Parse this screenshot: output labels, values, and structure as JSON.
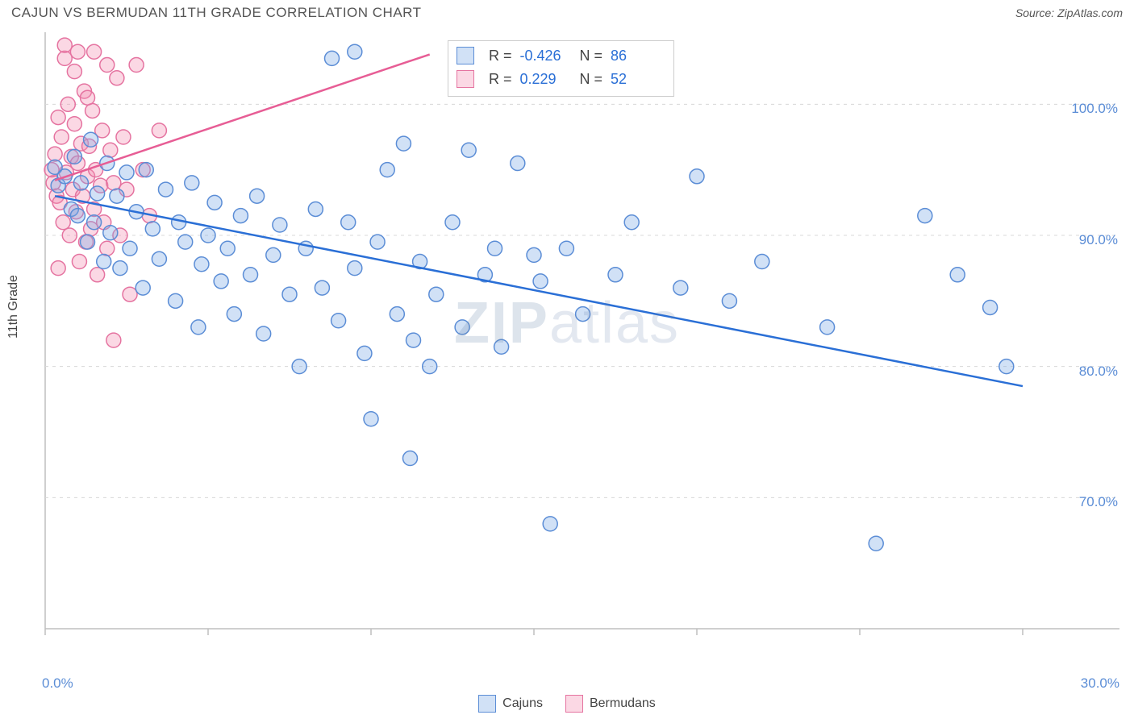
{
  "title": "CAJUN VS BERMUDAN 11TH GRADE CORRELATION CHART",
  "source_label": "Source: ",
  "source_name": "ZipAtlas.com",
  "ylabel": "11th Grade",
  "watermark": {
    "bold": "ZIP",
    "light": "atlas"
  },
  "legend": {
    "series_a": "Cajuns",
    "series_b": "Bermudans"
  },
  "stats": {
    "a": {
      "r_label": "R =",
      "r": "-0.426",
      "n_label": "N =",
      "n": "86"
    },
    "b": {
      "r_label": "R =",
      "r": "0.229",
      "n_label": "N =",
      "n": "52"
    }
  },
  "axes": {
    "xlim": [
      0,
      30
    ],
    "ylim": [
      60,
      105
    ],
    "x_ticks": [
      "0.0%",
      "30.0%"
    ],
    "y_ticks": [
      "100.0%",
      "90.0%",
      "80.0%",
      "70.0%"
    ],
    "y_tick_vals": [
      100,
      90,
      80,
      70
    ],
    "x_minor_ticks": [
      0,
      5,
      10,
      15,
      20,
      25,
      30
    ],
    "grid_color": "#d8d8d8",
    "axis_color": "#bfbfbf",
    "background": "#ffffff"
  },
  "colors": {
    "cajun_fill": "rgba(122,170,230,0.35)",
    "cajun_stroke": "#5b8dd6",
    "berm_fill": "rgba(244,143,177,0.35)",
    "berm_stroke": "#e573a0",
    "cajun_line": "#2a6fd6",
    "berm_line": "#e75d95",
    "label_color": "#5b8dd6",
    "text_color": "#555"
  },
  "marker_radius": 9,
  "trend_lines": {
    "cajun": {
      "x1": 0.3,
      "y1": 93.0,
      "x2": 30.0,
      "y2": 78.5
    },
    "berm": {
      "x1": 0.3,
      "y1": 94.2,
      "x2": 11.8,
      "y2": 103.8
    }
  },
  "series": {
    "cajuns": [
      [
        0.3,
        95.2
      ],
      [
        0.4,
        93.8
      ],
      [
        0.6,
        94.5
      ],
      [
        0.8,
        92.0
      ],
      [
        0.9,
        96.0
      ],
      [
        1.0,
        91.5
      ],
      [
        1.1,
        94.0
      ],
      [
        1.3,
        89.5
      ],
      [
        1.4,
        97.3
      ],
      [
        1.5,
        91.0
      ],
      [
        1.6,
        93.2
      ],
      [
        1.8,
        88.0
      ],
      [
        1.9,
        95.5
      ],
      [
        2.0,
        90.2
      ],
      [
        2.2,
        93.0
      ],
      [
        2.3,
        87.5
      ],
      [
        2.5,
        94.8
      ],
      [
        2.6,
        89.0
      ],
      [
        2.8,
        91.8
      ],
      [
        3.0,
        86.0
      ],
      [
        3.1,
        95.0
      ],
      [
        3.3,
        90.5
      ],
      [
        3.5,
        88.2
      ],
      [
        3.7,
        93.5
      ],
      [
        4.0,
        85.0
      ],
      [
        4.1,
        91.0
      ],
      [
        4.3,
        89.5
      ],
      [
        4.5,
        94.0
      ],
      [
        4.7,
        83.0
      ],
      [
        4.8,
        87.8
      ],
      [
        5.0,
        90.0
      ],
      [
        5.2,
        92.5
      ],
      [
        5.4,
        86.5
      ],
      [
        5.6,
        89.0
      ],
      [
        5.8,
        84.0
      ],
      [
        6.0,
        91.5
      ],
      [
        6.3,
        87.0
      ],
      [
        6.5,
        93.0
      ],
      [
        6.7,
        82.5
      ],
      [
        7.0,
        88.5
      ],
      [
        7.2,
        90.8
      ],
      [
        7.5,
        85.5
      ],
      [
        7.8,
        80.0
      ],
      [
        8.0,
        89.0
      ],
      [
        8.3,
        92.0
      ],
      [
        8.5,
        86.0
      ],
      [
        8.8,
        103.5
      ],
      [
        9.0,
        83.5
      ],
      [
        9.3,
        91.0
      ],
      [
        9.5,
        104.0
      ],
      [
        9.5,
        87.5
      ],
      [
        9.8,
        81.0
      ],
      [
        10.0,
        76.0
      ],
      [
        10.2,
        89.5
      ],
      [
        10.5,
        95.0
      ],
      [
        10.8,
        84.0
      ],
      [
        11.0,
        97.0
      ],
      [
        11.3,
        82.0
      ],
      [
        11.5,
        88.0
      ],
      [
        11.8,
        80.0
      ],
      [
        11.2,
        73.0
      ],
      [
        12.0,
        85.5
      ],
      [
        12.5,
        91.0
      ],
      [
        12.8,
        83.0
      ],
      [
        13.0,
        96.5
      ],
      [
        13.5,
        87.0
      ],
      [
        13.8,
        89.0
      ],
      [
        14.0,
        81.5
      ],
      [
        14.5,
        95.5
      ],
      [
        15.0,
        88.5
      ],
      [
        15.2,
        86.5
      ],
      [
        15.5,
        68.0
      ],
      [
        16.0,
        89.0
      ],
      [
        16.5,
        84.0
      ],
      [
        17.5,
        87.0
      ],
      [
        18.0,
        91.0
      ],
      [
        19.5,
        86.0
      ],
      [
        20.0,
        94.5
      ],
      [
        21.0,
        85.0
      ],
      [
        22.0,
        88.0
      ],
      [
        24.0,
        83.0
      ],
      [
        25.5,
        66.5
      ],
      [
        27.0,
        91.5
      ],
      [
        28.0,
        87.0
      ],
      [
        29.0,
        84.5
      ],
      [
        29.5,
        80.0
      ]
    ],
    "bermudans": [
      [
        0.2,
        95.0
      ],
      [
        0.25,
        94.0
      ],
      [
        0.3,
        96.2
      ],
      [
        0.35,
        93.0
      ],
      [
        0.4,
        99.0
      ],
      [
        0.45,
        92.5
      ],
      [
        0.5,
        97.5
      ],
      [
        0.55,
        91.0
      ],
      [
        0.6,
        103.5
      ],
      [
        0.65,
        94.8
      ],
      [
        0.7,
        100.0
      ],
      [
        0.75,
        90.0
      ],
      [
        0.8,
        96.0
      ],
      [
        0.85,
        93.5
      ],
      [
        0.9,
        98.5
      ],
      [
        0.95,
        91.8
      ],
      [
        1.0,
        95.5
      ],
      [
        1.05,
        88.0
      ],
      [
        1.1,
        97.0
      ],
      [
        1.15,
        93.0
      ],
      [
        1.2,
        101.0
      ],
      [
        1.25,
        89.5
      ],
      [
        1.3,
        94.5
      ],
      [
        1.35,
        96.8
      ],
      [
        1.4,
        90.5
      ],
      [
        1.45,
        99.5
      ],
      [
        1.5,
        92.0
      ],
      [
        1.55,
        95.0
      ],
      [
        1.6,
        87.0
      ],
      [
        1.7,
        93.8
      ],
      [
        1.75,
        98.0
      ],
      [
        1.8,
        91.0
      ],
      [
        1.5,
        104.0
      ],
      [
        1.9,
        103.0
      ],
      [
        1.9,
        89.0
      ],
      [
        2.0,
        96.5
      ],
      [
        2.1,
        94.0
      ],
      [
        2.2,
        102.0
      ],
      [
        2.3,
        90.0
      ],
      [
        2.4,
        97.5
      ],
      [
        2.5,
        93.5
      ],
      [
        1.0,
        104.0
      ],
      [
        2.6,
        85.5
      ],
      [
        2.8,
        103.0
      ],
      [
        3.0,
        95.0
      ],
      [
        3.2,
        91.5
      ],
      [
        3.5,
        98.0
      ],
      [
        2.1,
        82.0
      ],
      [
        0.6,
        104.5
      ],
      [
        0.9,
        102.5
      ],
      [
        1.3,
        100.5
      ],
      [
        0.4,
        87.5
      ]
    ]
  }
}
